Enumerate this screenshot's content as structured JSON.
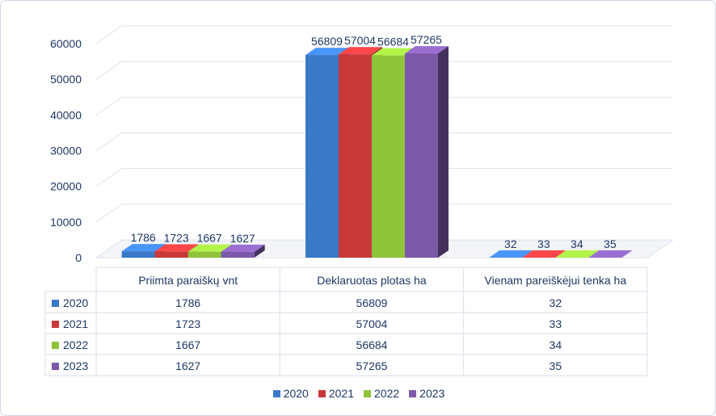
{
  "chart_data": {
    "type": "bar",
    "categories": [
      "Priimta paraiškų vnt",
      "Deklaruotas plotas ha",
      "Vienam pareiškėjui tenka ha"
    ],
    "series": [
      {
        "name": "2020",
        "values": [
          1786,
          56809,
          32
        ],
        "color": "#3a78c8"
      },
      {
        "name": "2021",
        "values": [
          1723,
          57004,
          33
        ],
        "color": "#c9393a"
      },
      {
        "name": "2022",
        "values": [
          1667,
          56684,
          34
        ],
        "color": "#8fc33a"
      },
      {
        "name": "2023",
        "values": [
          1627,
          57265,
          35
        ],
        "color": "#7c58a8"
      }
    ],
    "yticks": [
      "0",
      "10000",
      "20000",
      "30000",
      "40000",
      "50000",
      "60000"
    ],
    "ylim": [
      0,
      60000
    ],
    "legend_position": "bottom",
    "data_table": true,
    "grid": true,
    "style": "3d-column"
  }
}
